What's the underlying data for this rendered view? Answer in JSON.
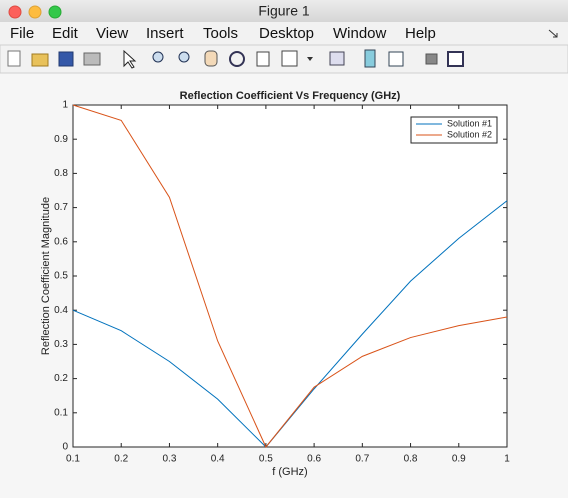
{
  "window": {
    "title": "Figure 1",
    "menu": [
      "File",
      "Edit",
      "View",
      "Insert",
      "Tools",
      "Desktop",
      "Window",
      "Help"
    ]
  },
  "chart_data": {
    "type": "line",
    "title": "Reflection Coefficient Vs Frequency (GHz)",
    "x_label": "f (GHz)",
    "y_label": "Reflection Coefficient Magnitude",
    "x": [
      0.1,
      0.2,
      0.3,
      0.4,
      0.5,
      0.6,
      0.7,
      0.8,
      0.9,
      1
    ],
    "series": [
      {
        "name": "Solution #1",
        "color": "#0072bd",
        "values": [
          0.4,
          0.34,
          0.25,
          0.14,
          0,
          0.17,
          0.33,
          0.485,
          0.61,
          0.72
        ]
      },
      {
        "name": "Solution #2",
        "color": "#d95319",
        "values": [
          1.0,
          0.955,
          0.73,
          0.31,
          0,
          0.175,
          0.265,
          0.32,
          0.355,
          0.38
        ]
      }
    ],
    "xlim": [
      0.1,
      1
    ],
    "ylim": [
      0,
      1
    ],
    "xticks": [
      0.1,
      0.2,
      0.3,
      0.4,
      0.5,
      0.6,
      0.7,
      0.8,
      0.9,
      1
    ],
    "yticks": [
      0,
      0.1,
      0.2,
      0.3,
      0.4,
      0.5,
      0.6,
      0.7,
      0.8,
      0.9,
      1
    ],
    "legend": "northeast",
    "grid": false
  }
}
